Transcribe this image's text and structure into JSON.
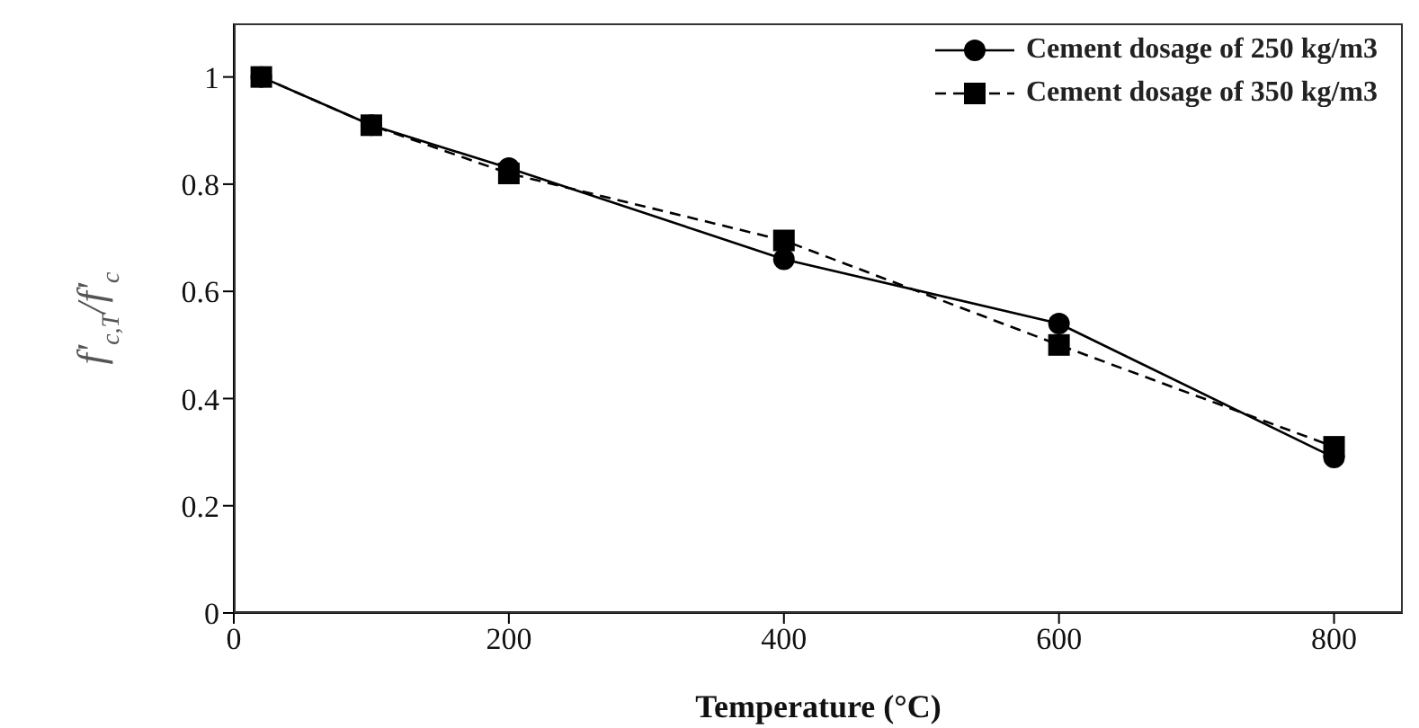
{
  "chart_data": {
    "type": "line",
    "xlabel": "Temperature (°C)",
    "ylabel": "f'$_{c,T}$/f'$_{c}$",
    "x": [
      20,
      100,
      200,
      400,
      600,
      800
    ],
    "series": [
      {
        "name": "Cement dosage of 250 kg/m3",
        "color": "#000000",
        "values": [
          1.0,
          0.91,
          0.83,
          0.66,
          0.54,
          0.29
        ],
        "marker": "circle",
        "line_style": "solid"
      },
      {
        "name": "Cement dosage of 350 kg/m3",
        "color": "#000000",
        "values": [
          1.0,
          0.91,
          0.82,
          0.695,
          0.5,
          0.31
        ],
        "marker": "square",
        "line_style": "dashed"
      }
    ],
    "xlim": [
      0,
      850
    ],
    "xticks": [
      0,
      200,
      400,
      600,
      800
    ],
    "ylim": [
      0,
      1.1
    ],
    "yticks": [
      0,
      0.2,
      0.4,
      0.6,
      0.8,
      1
    ],
    "grid": false,
    "legend": "top right"
  }
}
